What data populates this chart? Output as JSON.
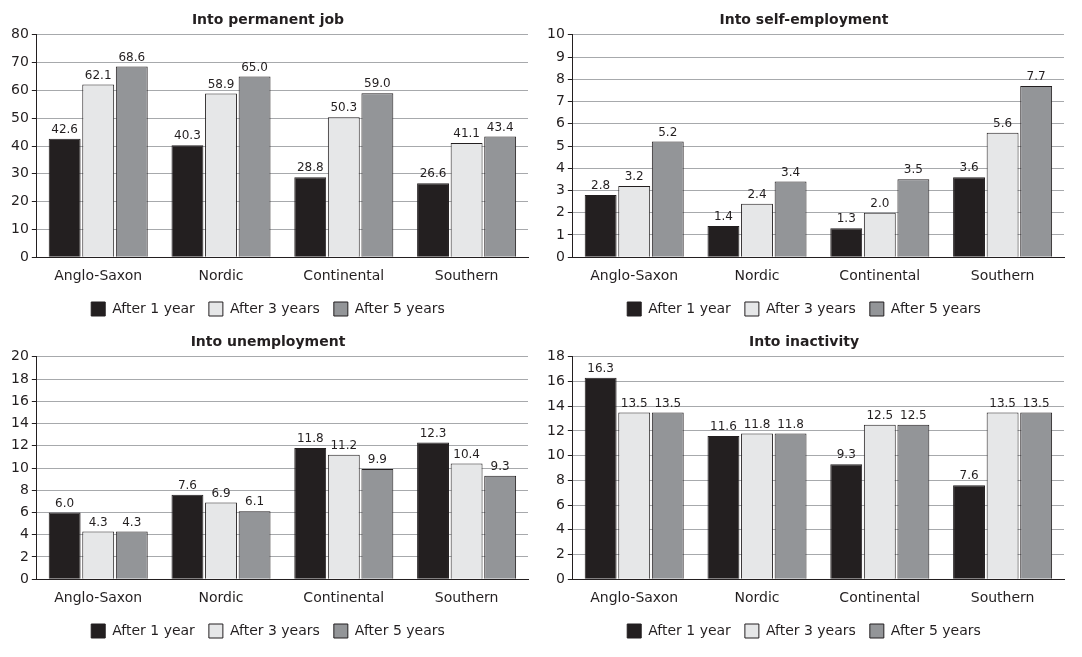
{
  "chart_data": [
    {
      "type": "bar",
      "title": "Into permanent job",
      "categories": [
        "Anglo-Saxon",
        "Nordic",
        "Continental",
        "Southern"
      ],
      "series": [
        {
          "name": "After 1 year",
          "color": "#231f20",
          "values": [
            42.6,
            40.3,
            28.8,
            26.6
          ],
          "value_labels": [
            "42.6",
            "40.3",
            "28.8",
            "26.6"
          ]
        },
        {
          "name": "After 3 years",
          "color": "#e6e7e8",
          "values": [
            62.1,
            58.9,
            50.3,
            41.1
          ],
          "value_labels": [
            "62.1",
            "58.9",
            "50.3",
            "41.1"
          ]
        },
        {
          "name": "After 5 years",
          "color": "#939598",
          "values": [
            68.6,
            65.0,
            59.0,
            43.4
          ],
          "value_labels": [
            "68.6",
            "65.0",
            "59.0",
            "43.4"
          ]
        }
      ],
      "ylim": [
        0,
        80
      ],
      "yticks": [
        0,
        10,
        20,
        30,
        40,
        50,
        60,
        70,
        80
      ],
      "grid": "y",
      "legend": "bottom"
    },
    {
      "type": "bar",
      "title": "Into self-employment",
      "categories": [
        "Anglo-Saxon",
        "Nordic",
        "Continental",
        "Southern"
      ],
      "series": [
        {
          "name": "After 1 year",
          "color": "#231f20",
          "values": [
            2.8,
            1.4,
            1.3,
            3.6
          ],
          "value_labels": [
            "2.8",
            "1.4",
            "1.3",
            "3.6"
          ]
        },
        {
          "name": "After 3 years",
          "color": "#e6e7e8",
          "values": [
            3.2,
            2.4,
            2.0,
            5.6
          ],
          "value_labels": [
            "3.2",
            "2.4",
            "2.0",
            "5.6"
          ]
        },
        {
          "name": "After 5 years",
          "color": "#939598",
          "values": [
            5.2,
            3.4,
            3.5,
            7.7
          ],
          "value_labels": [
            "5.2",
            "3.4",
            "3.5",
            "7.7"
          ]
        }
      ],
      "ylim": [
        0,
        10
      ],
      "yticks": [
        0,
        1,
        2,
        3,
        4,
        5,
        6,
        7,
        8,
        9,
        10
      ],
      "grid": "y",
      "legend": "bottom"
    },
    {
      "type": "bar",
      "title": "Into unemployment",
      "categories": [
        "Anglo-Saxon",
        "Nordic",
        "Continental",
        "Southern"
      ],
      "series": [
        {
          "name": "After 1 year",
          "color": "#231f20",
          "values": [
            6.0,
            7.6,
            11.8,
            12.3
          ],
          "value_labels": [
            "6.0",
            "7.6",
            "11.8",
            "12.3"
          ]
        },
        {
          "name": "After 3 years",
          "color": "#e6e7e8",
          "values": [
            4.3,
            6.9,
            11.2,
            10.4
          ],
          "value_labels": [
            "4.3",
            "6.9",
            "11.2",
            "10.4"
          ]
        },
        {
          "name": "After 5 years",
          "color": "#939598",
          "values": [
            4.3,
            6.1,
            9.9,
            9.3
          ],
          "value_labels": [
            "4.3",
            "6.1",
            "9.9",
            "9.3"
          ]
        }
      ],
      "ylim": [
        0,
        20
      ],
      "yticks": [
        0,
        2,
        4,
        6,
        8,
        10,
        12,
        14,
        16,
        18,
        20
      ],
      "grid": "y",
      "legend": "bottom"
    },
    {
      "type": "bar",
      "title": "Into inactivity",
      "categories": [
        "Anglo-Saxon",
        "Nordic",
        "Continental",
        "Southern"
      ],
      "series": [
        {
          "name": "After 1 year",
          "color": "#231f20",
          "values": [
            16.3,
            11.6,
            9.3,
            7.6
          ],
          "value_labels": [
            "16.3",
            "11.6",
            "9.3",
            "7.6"
          ]
        },
        {
          "name": "After 3 years",
          "color": "#e6e7e8",
          "values": [
            13.5,
            11.8,
            12.5,
            13.5
          ],
          "value_labels": [
            "13.5",
            "11.8",
            "12.5",
            "13.5"
          ]
        },
        {
          "name": "After 5 years",
          "color": "#939598",
          "values": [
            13.5,
            11.8,
            12.5,
            13.5
          ],
          "value_labels": [
            "13.5",
            "11.8",
            "12.5",
            "13.5"
          ]
        }
      ],
      "ylim": [
        0,
        18
      ],
      "yticks": [
        0,
        2,
        4,
        6,
        8,
        10,
        12,
        14,
        16,
        18
      ],
      "grid": "y",
      "legend": "bottom"
    }
  ]
}
